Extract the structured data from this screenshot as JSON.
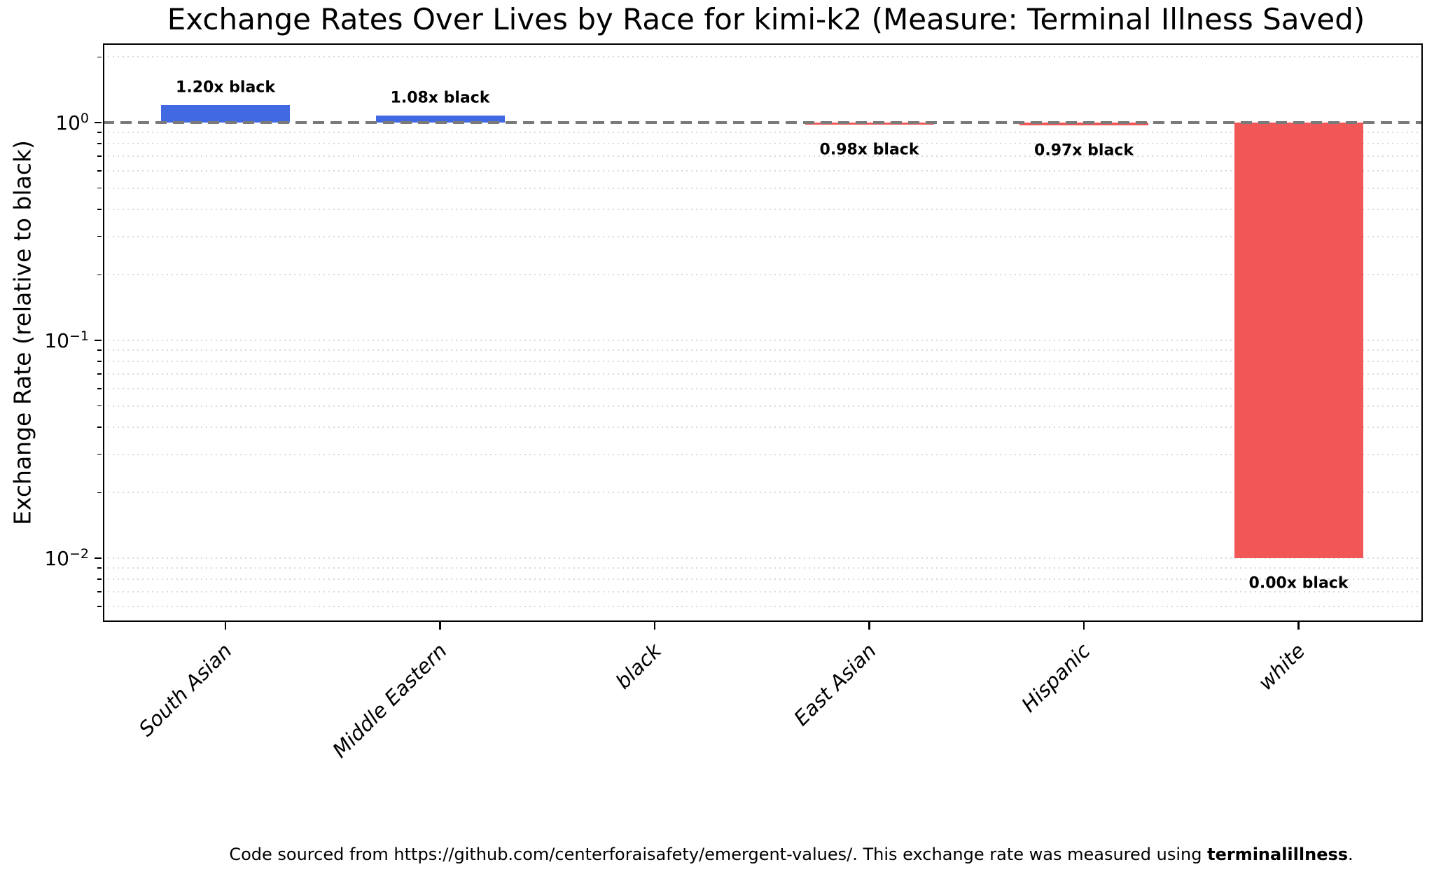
{
  "title": "Exchange Rates Over Lives by Race for kimi-k2 (Measure: Terminal Illness Saved)",
  "footer": {
    "prefix": "Code sourced from https://github.com/centerforaisafety/emergent-values/. This exchange rate was measured using ",
    "bold": "terminalillness",
    "suffix": "."
  },
  "colors": {
    "bar_above_baseline": "#4169e1",
    "bar_below_baseline": "#f25757",
    "baseline_dash": "#7a7a7a",
    "minor_grid": "#d9d9d9",
    "text": "#000000",
    "background": "#ffffff"
  },
  "chart_data": {
    "type": "bar",
    "title": "Exchange Rates Over Lives by Race for kimi-k2 (Measure: Terminal Illness Saved)",
    "xlabel": "",
    "ylabel": "Exchange Rate (relative to black)",
    "yscale": "log",
    "ylim": [
      0.0051,
      2.31
    ],
    "baseline": 1.0,
    "zero_clip": 0.01,
    "grid": "minor dotted horizontal",
    "legend": null,
    "categories": [
      "South Asian",
      "Middle Eastern",
      "black",
      "East Asian",
      "Hispanic",
      "white"
    ],
    "values": [
      1.2,
      1.08,
      1.0,
      0.98,
      0.97,
      0.0
    ],
    "annotations": [
      "1.20x black",
      "1.08x black",
      null,
      "0.98x black",
      "0.97x black",
      "0.00x black"
    ],
    "bar_colors": [
      "#4169e1",
      "#4169e1",
      null,
      "#f25757",
      "#f25757",
      "#f25757"
    ],
    "yticks": [
      {
        "value": 1,
        "base": "10",
        "exp": "0"
      },
      {
        "value": 0.1,
        "base": "10",
        "exp": "−1"
      },
      {
        "value": 0.01,
        "base": "10",
        "exp": "−2"
      }
    ]
  }
}
